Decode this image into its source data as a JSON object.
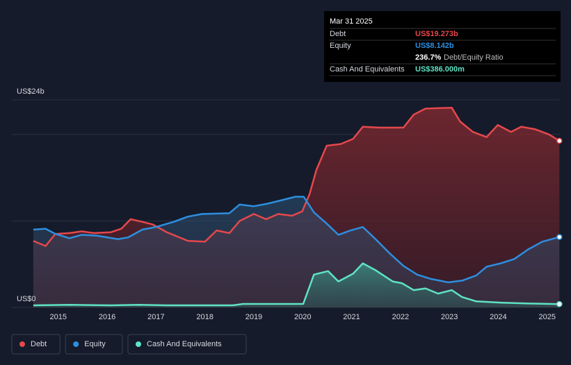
{
  "chart_data": {
    "type": "line",
    "ylim": [
      0,
      24
    ],
    "yticks": [
      {
        "value": 0,
        "label": "US$0"
      },
      {
        "value": 24,
        "label": "US$24b"
      }
    ],
    "gridlines": [
      0,
      10,
      20,
      24
    ],
    "xlim": [
      2014.05,
      2025.26
    ],
    "xticks": [
      2015,
      2016,
      2017,
      2018,
      2019,
      2020,
      2021,
      2022,
      2023,
      2024,
      2025
    ],
    "legend": "bottom-left",
    "series": [
      {
        "name": "Debt",
        "color": "#e5484d",
        "x": [
          2014.49,
          2014.74,
          2014.94,
          2015.23,
          2015.48,
          2015.73,
          2016.08,
          2016.29,
          2016.48,
          2016.72,
          2016.93,
          2017.22,
          2017.65,
          2018.0,
          2018.24,
          2018.5,
          2018.71,
          2019.0,
          2019.25,
          2019.5,
          2019.78,
          2019.99,
          2020.14,
          2020.28,
          2020.49,
          2020.78,
          2021.03,
          2021.23,
          2021.56,
          2022.06,
          2022.27,
          2022.51,
          2023.05,
          2023.22,
          2023.48,
          2023.76,
          2023.99,
          2024.26,
          2024.47,
          2024.76,
          2025.04,
          2025.25
        ],
        "values": [
          7.7,
          7.1,
          8.5,
          8.6,
          8.8,
          8.6,
          8.7,
          9.1,
          10.2,
          9.9,
          9.6,
          8.7,
          7.7,
          7.6,
          8.9,
          8.6,
          10.0,
          10.8,
          10.2,
          10.8,
          10.6,
          11.1,
          13.1,
          15.9,
          18.7,
          18.9,
          19.5,
          20.9,
          20.8,
          20.8,
          22.3,
          23.0,
          23.1,
          21.5,
          20.3,
          19.7,
          21.1,
          20.3,
          20.9,
          20.6,
          20.0,
          19.273
        ]
      },
      {
        "name": "Equity",
        "color": "#2d8fe0",
        "x": [
          2014.49,
          2014.74,
          2014.94,
          2015.23,
          2015.48,
          2015.79,
          2016.22,
          2016.43,
          2016.72,
          2017.0,
          2017.36,
          2017.65,
          2017.94,
          2018.5,
          2018.71,
          2019.0,
          2019.28,
          2019.57,
          2019.85,
          2020.02,
          2020.23,
          2020.49,
          2020.73,
          2020.98,
          2021.23,
          2021.49,
          2021.77,
          2022.06,
          2022.34,
          2022.62,
          2022.98,
          2023.26,
          2023.55,
          2023.76,
          2024.05,
          2024.33,
          2024.61,
          2024.9,
          2025.25
        ],
        "values": [
          9.0,
          9.1,
          8.5,
          8.0,
          8.4,
          8.3,
          7.9,
          8.1,
          9.0,
          9.3,
          9.9,
          10.5,
          10.8,
          10.9,
          11.9,
          11.7,
          12.0,
          12.4,
          12.8,
          12.8,
          11.0,
          9.7,
          8.4,
          8.9,
          9.3,
          7.9,
          6.3,
          4.8,
          3.8,
          3.3,
          2.9,
          3.1,
          3.7,
          4.7,
          5.1,
          5.6,
          6.7,
          7.6,
          8.142
        ]
      },
      {
        "name": "Cash And Equivalents",
        "color": "#5fe3c5",
        "x": [
          2014.49,
          2015.23,
          2016.08,
          2016.65,
          2017.22,
          2018.07,
          2018.57,
          2018.78,
          2019.5,
          2020.01,
          2020.23,
          2020.52,
          2020.73,
          2021.03,
          2021.23,
          2021.49,
          2021.84,
          2022.03,
          2022.27,
          2022.51,
          2022.77,
          2023.05,
          2023.26,
          2023.55,
          2024.05,
          2024.62,
          2025.25
        ],
        "values": [
          0.24,
          0.3,
          0.24,
          0.3,
          0.24,
          0.24,
          0.24,
          0.4,
          0.4,
          0.4,
          3.8,
          4.2,
          3.0,
          3.9,
          5.1,
          4.3,
          3.0,
          2.8,
          2.0,
          2.2,
          1.6,
          2.0,
          1.2,
          0.7,
          0.55,
          0.45,
          0.386
        ]
      }
    ],
    "tooltip": {
      "date": "Mar 31 2025",
      "rows": [
        {
          "label": "Debt",
          "value": "US$19.273b"
        },
        {
          "label": "Equity",
          "value": "US$8.142b"
        },
        {
          "value": "236.7%",
          "note": "Debt/Equity Ratio"
        },
        {
          "label": "Cash And Equivalents",
          "value": "US$386.000m"
        }
      ]
    }
  }
}
